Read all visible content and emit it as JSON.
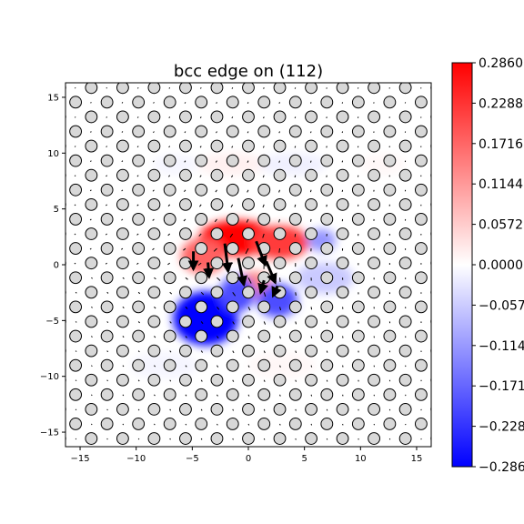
{
  "chart_data": {
    "type": "heatmap",
    "title": "bcc edge on (112)",
    "xlabel": "",
    "ylabel": "",
    "xlim": [
      -16.3,
      16.3
    ],
    "ylim": [
      -16.3,
      16.3
    ],
    "xticks": [
      -15,
      -10,
      -5,
      0,
      5,
      10,
      15
    ],
    "yticks": [
      -15,
      -10,
      -5,
      0,
      5,
      10,
      15
    ],
    "grid": false,
    "colormap": "bwr",
    "colorbar": {
      "min": -0.286,
      "max": 0.286,
      "tick_values": [
        0.286,
        0.2288,
        0.1716,
        0.1144,
        0.0572,
        0.0,
        -0.0572,
        -0.1144,
        -0.1716,
        -0.2288,
        -0.286
      ],
      "tick_labels": [
        "0.2860",
        "0.2288",
        "0.1716",
        "0.1144",
        "0.0572",
        "0.0000",
        "-0.0572",
        "-0.1144",
        "-0.1716",
        "-0.2288",
        "-0.2860"
      ]
    },
    "lattice": {
      "a1": [
        2.8,
        0.0
      ],
      "a2": [
        1.4,
        1.31
      ],
      "atom_radius": 0.52,
      "atom_fill": "#d8d8d8",
      "atom_stroke": "#000000"
    },
    "field_blobs": [
      {
        "x": -1.0,
        "y": 2.4,
        "value": 0.286,
        "sx": 3.4,
        "sy": 1.6
      },
      {
        "x": 2.8,
        "y": 2.0,
        "value": 0.22,
        "sx": 2.6,
        "sy": 1.5
      },
      {
        "x": -4.0,
        "y": 0.8,
        "value": 0.18,
        "sx": 2.0,
        "sy": 1.6
      },
      {
        "x": 0.5,
        "y": -1.8,
        "value": 0.15,
        "sx": 1.6,
        "sy": 1.2
      },
      {
        "x": -3.8,
        "y": -4.8,
        "value": -0.286,
        "sx": 2.9,
        "sy": 2.4
      },
      {
        "x": -1.0,
        "y": -2.6,
        "value": -0.2,
        "sx": 1.6,
        "sy": 1.6
      },
      {
        "x": 2.6,
        "y": -3.2,
        "value": -0.2,
        "sx": 1.8,
        "sy": 1.5
      },
      {
        "x": 6.5,
        "y": 2.2,
        "value": -0.14,
        "sx": 1.3,
        "sy": 1.0
      },
      {
        "x": 6.8,
        "y": -1.2,
        "value": -0.09,
        "sx": 2.6,
        "sy": 1.4
      },
      {
        "x": -1.5,
        "y": 9.0,
        "value": 0.035,
        "sx": 3.0,
        "sy": 1.0
      },
      {
        "x": 4.0,
        "y": 9.0,
        "value": -0.035,
        "sx": 3.0,
        "sy": 1.0
      },
      {
        "x": -6.5,
        "y": 9.0,
        "value": -0.025,
        "sx": 2.0,
        "sy": 0.9
      },
      {
        "x": 12.0,
        "y": 9.0,
        "value": 0.02,
        "sx": 2.0,
        "sy": 0.9
      },
      {
        "x": -7.5,
        "y": -9.0,
        "value": -0.025,
        "sx": 3.0,
        "sy": 1.2
      },
      {
        "x": 3.0,
        "y": -9.0,
        "value": 0.02,
        "sx": 3.0,
        "sy": 1.2
      }
    ],
    "displacement_arrows": [
      {
        "x": -2.1,
        "y": 1.9,
        "dx": 0.3,
        "dy": -2.5
      },
      {
        "x": -0.9,
        "y": 0.6,
        "dx": 0.5,
        "dy": -2.4
      },
      {
        "x": 0.7,
        "y": 2.1,
        "dx": 0.8,
        "dy": -2.1
      },
      {
        "x": 1.6,
        "y": 0.3,
        "dx": 0.8,
        "dy": -1.9
      },
      {
        "x": -4.9,
        "y": 1.2,
        "dx": 0.0,
        "dy": -1.6
      },
      {
        "x": -3.6,
        "y": 0.2,
        "dx": 0.1,
        "dy": -1.3
      },
      {
        "x": 1.4,
        "y": -1.4,
        "dx": -0.3,
        "dy": -1.1
      },
      {
        "x": 2.6,
        "y": -1.9,
        "dx": -0.4,
        "dy": -0.9
      }
    ]
  }
}
